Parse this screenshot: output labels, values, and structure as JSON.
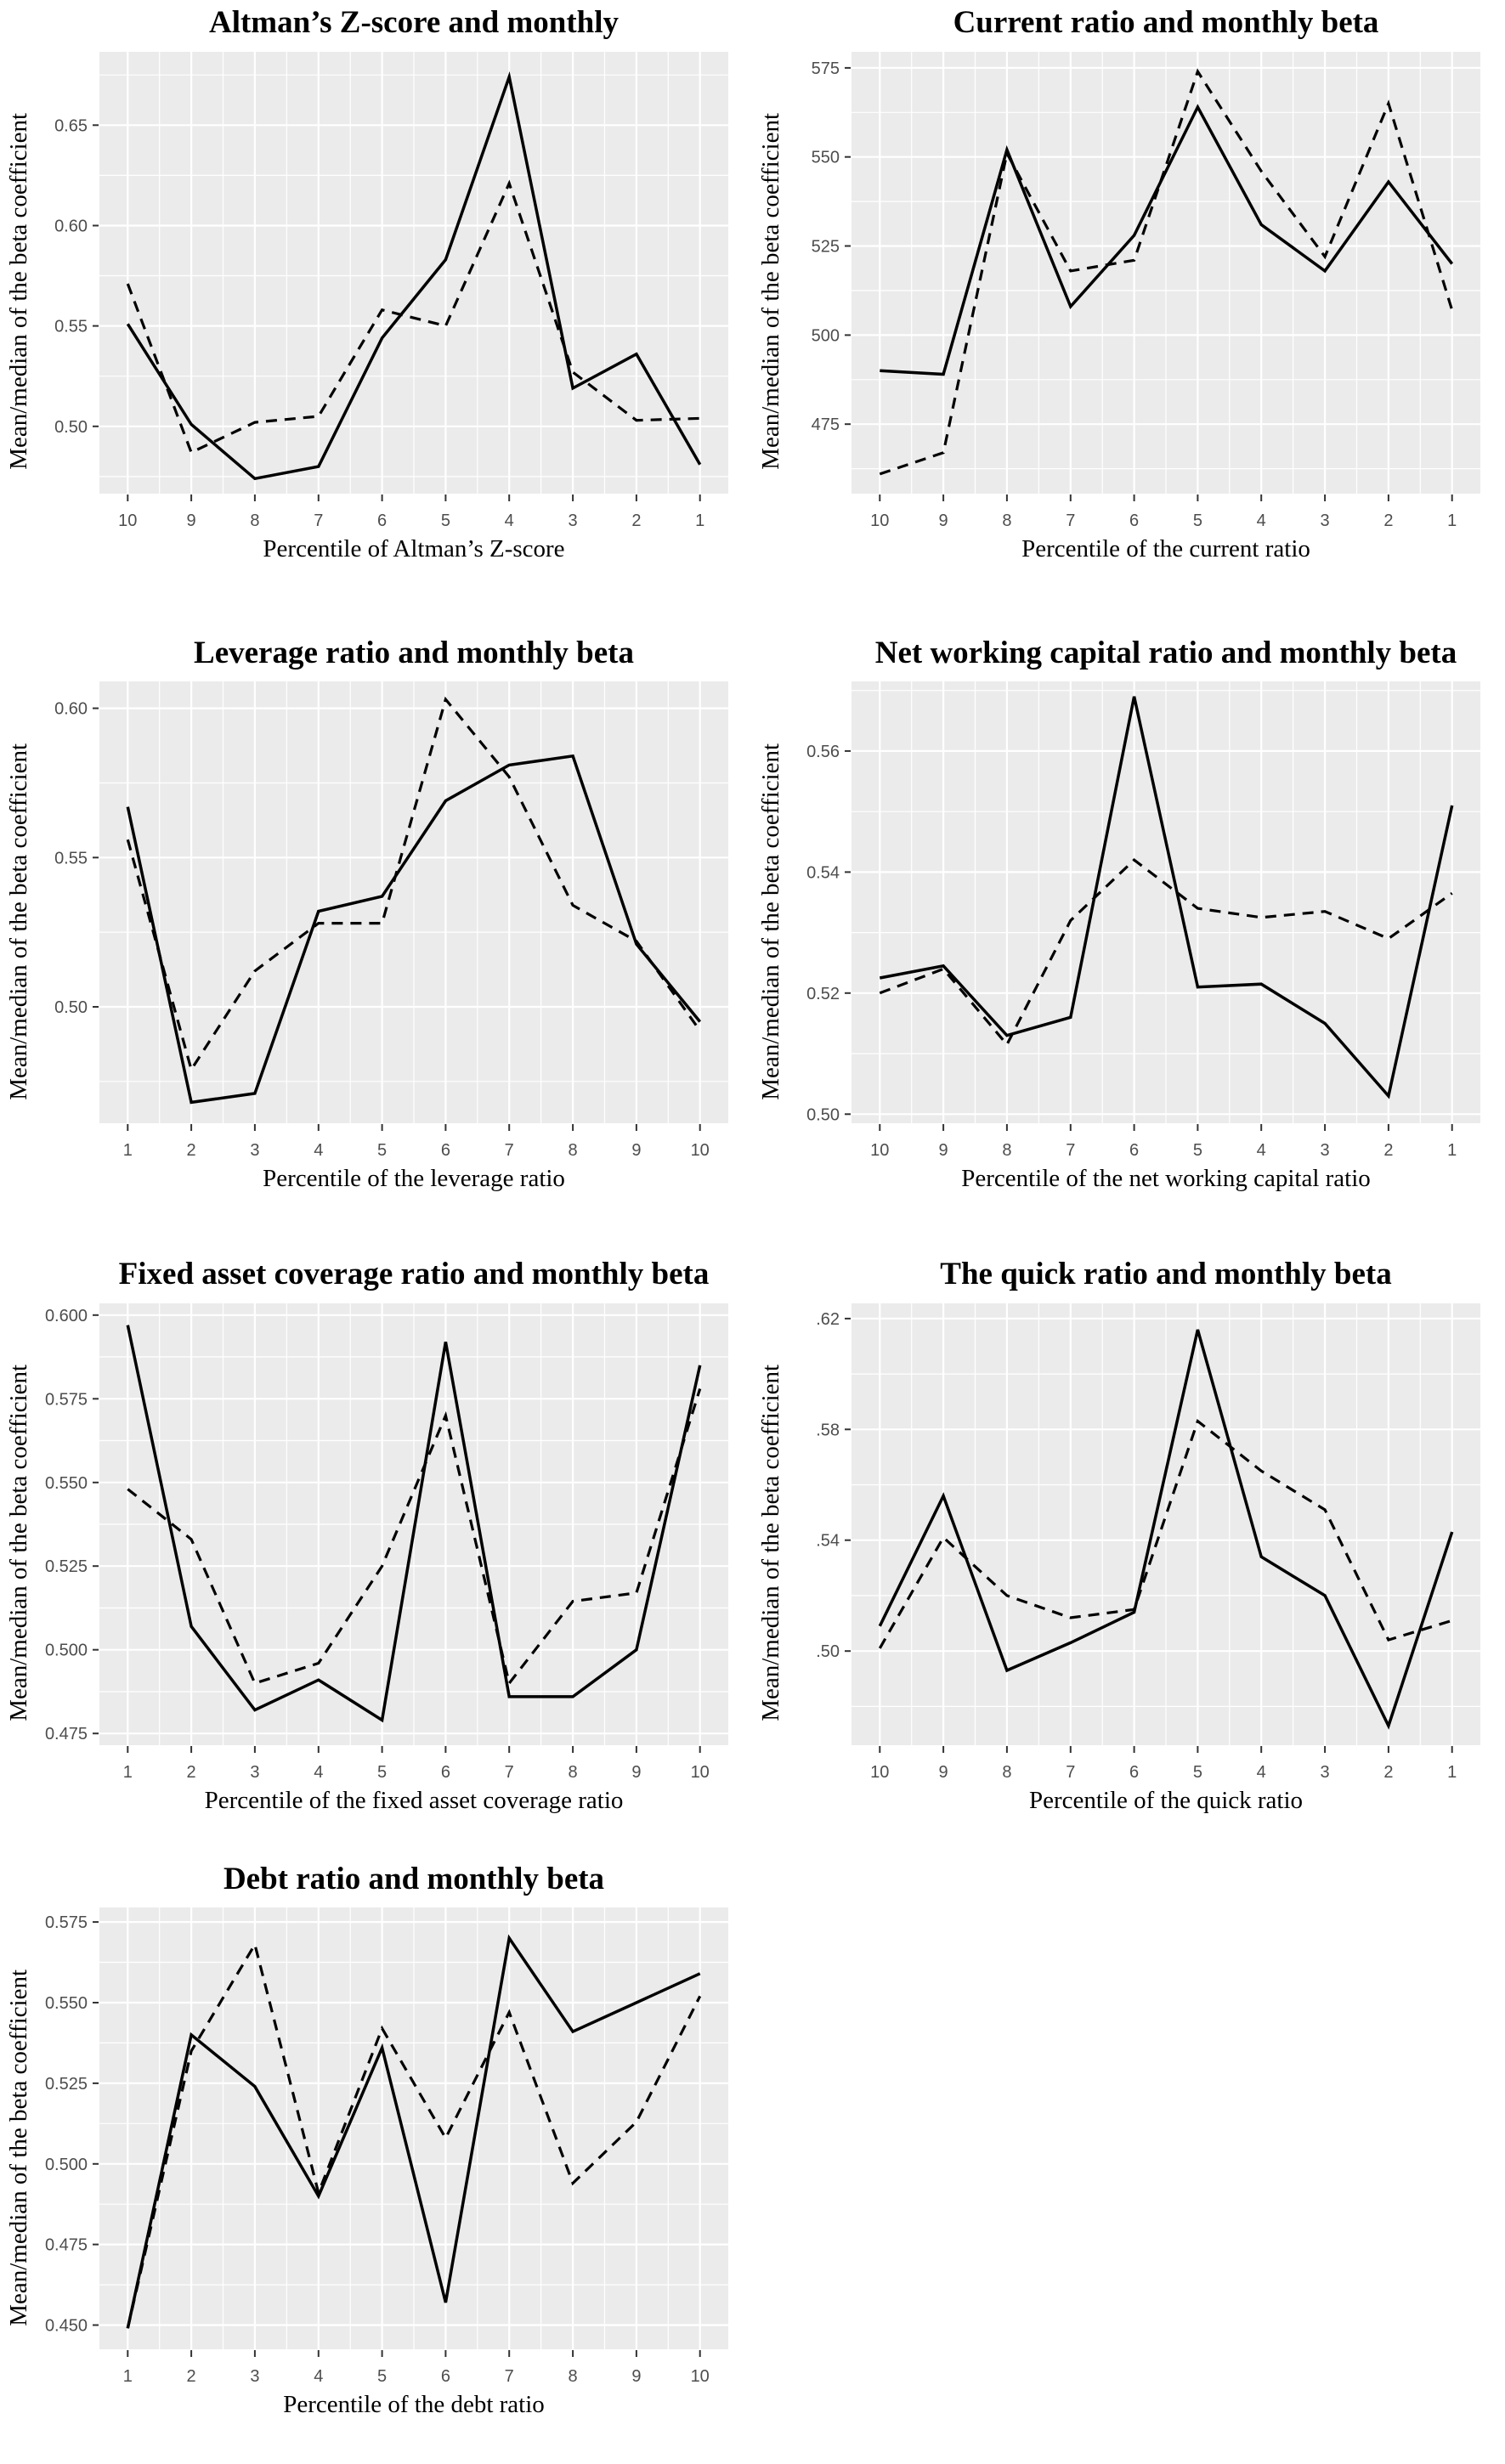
{
  "styles": {
    "plot_bg": "#ebebeb",
    "grid": "#ffffff",
    "line": "#000000",
    "tick_mark": "#333333",
    "tick_label": "#4d4d4d"
  },
  "chart_data": [
    {
      "id": "altman-z",
      "type": "line",
      "title": "Altman’s Z-score and monthly",
      "xlabel": "Percentile of Altman’s Z-score",
      "ylabel": "Mean/median of the beta coefficient",
      "x_categories": [
        "10",
        "9",
        "8",
        "7",
        "6",
        "5",
        "4",
        "3",
        "2",
        "1"
      ],
      "yticks": [
        0.5,
        0.55,
        0.6,
        0.65
      ],
      "ytick_labels": [
        "0.50",
        "0.55",
        "0.60",
        "0.65"
      ],
      "ylim": [
        0.4665,
        0.6865
      ],
      "grid": true,
      "legend": "none",
      "series": [
        {
          "name": "solid",
          "style": "solid",
          "values": [
            0.551,
            0.501,
            0.474,
            0.48,
            0.544,
            0.583,
            0.674,
            0.519,
            0.536,
            0.481
          ]
        },
        {
          "name": "dashed",
          "style": "dashed",
          "values": [
            0.571,
            0.487,
            0.502,
            0.505,
            0.558,
            0.55,
            0.621,
            0.527,
            0.503,
            0.504
          ]
        }
      ]
    },
    {
      "id": "current-ratio",
      "type": "line",
      "title": "Current ratio and monthly beta",
      "xlabel": "Percentile of the current ratio",
      "ylabel": "Mean/median of the beta coefficient",
      "x_categories": [
        "10",
        "9",
        "8",
        "7",
        "6",
        "5",
        "4",
        "3",
        "2",
        "1"
      ],
      "yticks": [
        475,
        500,
        525,
        550,
        575
      ],
      "ytick_labels": [
        "475",
        "500",
        "525",
        "550",
        "575"
      ],
      "ylim": [
        455.5,
        579.5
      ],
      "grid": true,
      "legend": "none",
      "series": [
        {
          "name": "solid",
          "style": "solid",
          "values": [
            490,
            489,
            552,
            508,
            528,
            564,
            531,
            518,
            543,
            520
          ]
        },
        {
          "name": "dashed",
          "style": "dashed",
          "values": [
            461,
            467,
            551,
            518,
            521,
            574,
            546,
            522,
            565,
            507
          ]
        }
      ]
    },
    {
      "id": "leverage-ratio",
      "type": "line",
      "title": "Leverage ratio and monthly beta",
      "xlabel": "Percentile of the leverage ratio",
      "ylabel": "Mean/median of the beta coefficient",
      "x_categories": [
        "1",
        "2",
        "3",
        "4",
        "5",
        "6",
        "7",
        "8",
        "9",
        "10"
      ],
      "yticks": [
        0.5,
        0.55,
        0.6
      ],
      "ytick_labels": [
        "0.50",
        "0.55",
        "0.60"
      ],
      "ylim": [
        0.461,
        0.609
      ],
      "grid": true,
      "legend": "none",
      "series": [
        {
          "name": "solid",
          "style": "solid",
          "values": [
            0.567,
            0.468,
            0.471,
            0.532,
            0.537,
            0.569,
            0.581,
            0.584,
            0.521,
            0.495
          ]
        },
        {
          "name": "dashed",
          "style": "dashed",
          "values": [
            0.556,
            0.479,
            0.512,
            0.528,
            0.528,
            0.603,
            0.577,
            0.534,
            0.522,
            0.492
          ]
        }
      ]
    },
    {
      "id": "net-working-capital",
      "type": "line",
      "title": "Net working capital ratio and monthly beta",
      "xlabel": "Percentile of the net working capital ratio",
      "ylabel": "Mean/median of the beta coefficient",
      "x_categories": [
        "10",
        "9",
        "8",
        "7",
        "6",
        "5",
        "4",
        "3",
        "2",
        "1"
      ],
      "yticks": [
        0.5,
        0.52,
        0.54,
        0.56
      ],
      "ytick_labels": [
        "0.50",
        "0.52",
        "0.54",
        "0.56"
      ],
      "ylim": [
        0.4985,
        0.5715
      ],
      "grid": true,
      "legend": "none",
      "series": [
        {
          "name": "solid",
          "style": "solid",
          "values": [
            0.5225,
            0.5245,
            0.513,
            0.516,
            0.569,
            0.521,
            0.5215,
            0.515,
            0.503,
            0.551
          ]
        },
        {
          "name": "dashed",
          "style": "dashed",
          "values": [
            0.52,
            0.524,
            0.5115,
            0.532,
            0.542,
            0.534,
            0.5325,
            0.5335,
            0.529,
            0.5365
          ]
        }
      ]
    },
    {
      "id": "fixed-asset-coverage",
      "type": "line",
      "title": "Fixed asset coverage ratio and monthly beta",
      "xlabel": "Percentile of the fixed asset coverage ratio",
      "ylabel": "Mean/median of the beta coefficient",
      "x_categories": [
        "1",
        "2",
        "3",
        "4",
        "5",
        "6",
        "7",
        "8",
        "9",
        "10"
      ],
      "yticks": [
        0.475,
        0.5,
        0.525,
        0.55,
        0.575,
        0.6
      ],
      "ytick_labels": [
        "0.475",
        "0.500",
        "0.525",
        "0.550",
        "0.575",
        "0.600"
      ],
      "ylim": [
        0.4715,
        0.6035
      ],
      "grid": true,
      "legend": "none",
      "series": [
        {
          "name": "solid",
          "style": "solid",
          "values": [
            0.597,
            0.507,
            0.482,
            0.491,
            0.479,
            0.592,
            0.486,
            0.486,
            0.5,
            0.585
          ]
        },
        {
          "name": "dashed",
          "style": "dashed",
          "values": [
            0.548,
            0.533,
            0.49,
            0.496,
            0.525,
            0.57,
            0.49,
            0.5145,
            0.517,
            0.578
          ]
        }
      ]
    },
    {
      "id": "quick-ratio",
      "type": "line",
      "title": "The quick ratio and monthly beta",
      "xlabel": "Percentile of the quick ratio",
      "ylabel": "Mean/median of the beta coefficient",
      "x_categories": [
        "10",
        "9",
        "8",
        "7",
        "6",
        "5",
        "4",
        "3",
        "2",
        "1"
      ],
      "yticks": [
        0.5,
        0.54,
        0.58,
        0.62
      ],
      "ytick_labels": [
        ".50",
        ".54",
        ".58",
        ".62"
      ],
      "ylim": [
        0.466,
        0.6255
      ],
      "grid": true,
      "legend": "none",
      "series": [
        {
          "name": "solid",
          "style": "solid",
          "values": [
            0.509,
            0.556,
            0.493,
            0.503,
            0.514,
            0.616,
            0.534,
            0.52,
            0.473,
            0.543
          ]
        },
        {
          "name": "dashed",
          "style": "dashed",
          "values": [
            0.501,
            0.541,
            0.52,
            0.512,
            0.515,
            0.583,
            0.565,
            0.551,
            0.504,
            0.511
          ]
        }
      ]
    },
    {
      "id": "debt-ratio",
      "type": "line",
      "title": "Debt ratio and monthly beta",
      "xlabel": "Percentile of the debt ratio",
      "ylabel": "Mean/median of the beta coefficient",
      "x_categories": [
        "1",
        "2",
        "3",
        "4",
        "5",
        "6",
        "7",
        "8",
        "9",
        "10"
      ],
      "yticks": [
        0.45,
        0.475,
        0.5,
        0.525,
        0.55,
        0.575
      ],
      "ytick_labels": [
        "0.450",
        "0.475",
        "0.500",
        "0.525",
        "0.550",
        "0.575"
      ],
      "ylim": [
        0.4425,
        0.5795
      ],
      "grid": true,
      "legend": "none",
      "series": [
        {
          "name": "solid",
          "style": "solid",
          "values": [
            0.449,
            0.54,
            0.524,
            0.49,
            0.536,
            0.457,
            0.57,
            0.541,
            0.55,
            0.559
          ]
        },
        {
          "name": "dashed",
          "style": "dashed",
          "values": [
            0.449,
            0.535,
            0.568,
            0.491,
            0.542,
            0.508,
            0.547,
            0.494,
            0.513,
            0.552
          ]
        }
      ]
    }
  ]
}
